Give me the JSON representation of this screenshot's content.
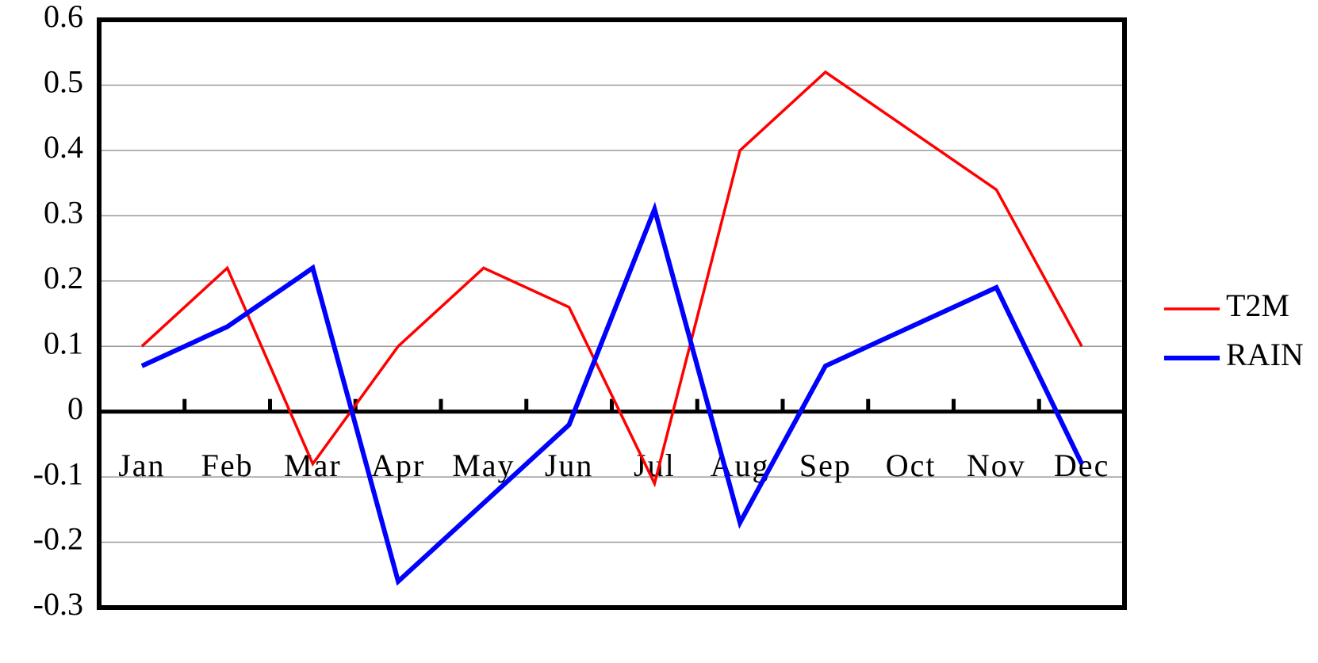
{
  "chart_data": {
    "type": "line",
    "categories": [
      "Jan",
      "Feb",
      "Mar",
      "Apr",
      "May",
      "Jun",
      "Jul",
      "Aug",
      "Sep",
      "Oct",
      "Nov",
      "Dec"
    ],
    "series": [
      {
        "name": "T2M",
        "color": "#ff0000",
        "values": [
          0.1,
          0.22,
          -0.08,
          0.1,
          0.22,
          0.16,
          -0.11,
          0.4,
          0.52,
          0.43,
          0.34,
          0.1
        ]
      },
      {
        "name": "RAIN",
        "color": "#0000ff",
        "values": [
          0.07,
          0.13,
          0.22,
          -0.26,
          -0.14,
          -0.02,
          0.31,
          -0.17,
          0.07,
          0.13,
          0.19,
          -0.08
        ]
      }
    ],
    "ylim": [
      -0.3,
      0.6
    ],
    "yticks": [
      -0.3,
      -0.2,
      -0.1,
      0,
      0.1,
      0.2,
      0.3,
      0.4,
      0.5,
      0.6
    ],
    "grid": true,
    "legend": "right"
  }
}
